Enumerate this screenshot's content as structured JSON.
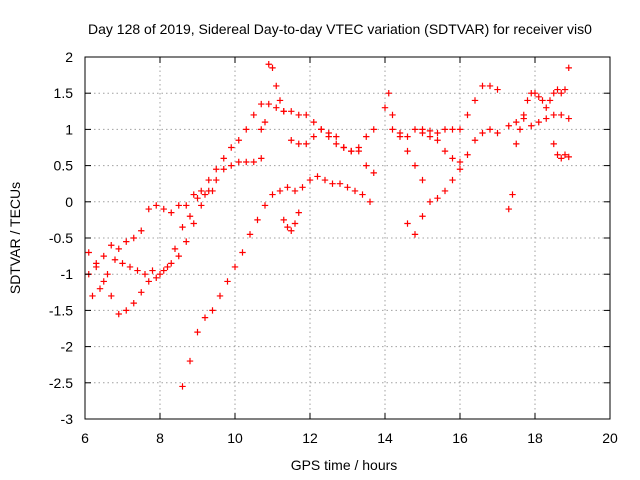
{
  "chart_data": {
    "type": "scatter",
    "title": "Day 128 of 2019, Sidereal Day-to-day VTEC variation (SDTVAR) for receiver vis0",
    "xlabel": "GPS time / hours",
    "ylabel": "SDTVAR / TECUs",
    "xlim": [
      6,
      20
    ],
    "ylim": [
      -3,
      2
    ],
    "xticks": [
      "6",
      "8",
      "10",
      "12",
      "14",
      "16",
      "18",
      "20"
    ],
    "yticks": [
      "2",
      "1.5",
      "1",
      "0.5",
      "0",
      "-0.5",
      "-1",
      "-1.5",
      "-2",
      "-2.5",
      "-3"
    ],
    "grid": true,
    "marker": "+",
    "color": "#ff0000",
    "series": [
      {
        "x": [
          6.1,
          6.3,
          6.5,
          6.7,
          6.9,
          7.1,
          7.3,
          7.5,
          7.7,
          7.9,
          8.1,
          8.3,
          8.5,
          8.7,
          8.9,
          9.1,
          9.3,
          9.5,
          9.7,
          9.9,
          10.1,
          10.3,
          10.5,
          10.7,
          10.9,
          11.1,
          11.3,
          11.5,
          11.7,
          11.9,
          12.1,
          12.3,
          12.5,
          12.7,
          12.9,
          13.1,
          13.3,
          13.5,
          13.7
        ],
        "y": [
          -1.0,
          -0.9,
          -0.75,
          -0.6,
          -0.65,
          -0.55,
          -0.5,
          -0.4,
          -0.1,
          -0.05,
          -0.1,
          -0.15,
          -0.05,
          -0.05,
          0.1,
          0.15,
          0.3,
          0.45,
          0.6,
          0.75,
          0.85,
          1.0,
          1.2,
          1.35,
          1.35,
          1.3,
          1.25,
          1.25,
          1.2,
          1.2,
          1.1,
          1.0,
          0.9,
          0.8,
          0.75,
          0.7,
          0.7,
          0.5,
          0.4
        ]
      },
      {
        "x": [
          6.1,
          6.3,
          6.5,
          6.7,
          6.9,
          7.1,
          7.3,
          7.5,
          7.7,
          7.9,
          8.1,
          8.3,
          8.5,
          8.7,
          8.9,
          9.1,
          9.3,
          9.5,
          9.7,
          9.9,
          10.1,
          10.3,
          10.5,
          10.7
        ],
        "y": [
          -0.7,
          -0.85,
          -1.1,
          -1.3,
          -1.55,
          -1.5,
          -1.4,
          -1.25,
          -1.1,
          -1.05,
          -0.95,
          -0.85,
          -0.75,
          -0.55,
          -0.3,
          -0.05,
          0.15,
          0.3,
          0.45,
          0.5,
          0.55,
          0.55,
          0.55,
          0.6
        ]
      },
      {
        "x": [
          6.2,
          6.4,
          6.6,
          6.8,
          7.0,
          7.2,
          7.4,
          7.6,
          7.8,
          8.0,
          8.2,
          8.4,
          8.6,
          8.8,
          9.0,
          9.2,
          9.4
        ],
        "y": [
          -1.3,
          -1.2,
          -1.0,
          -0.8,
          -0.85,
          -0.9,
          -0.95,
          -1.0,
          -0.95,
          -1.0,
          -0.9,
          -0.65,
          -0.35,
          -0.2,
          0.05,
          0.1,
          0.15
        ]
      },
      {
        "x": [
          8.6,
          8.8,
          9.0,
          9.2,
          9.4,
          9.6,
          9.8,
          10.0,
          10.2,
          10.4,
          10.6,
          10.8,
          11.0,
          11.2,
          11.4,
          11.6,
          11.8,
          12.0,
          12.2,
          12.4,
          12.6,
          12.8,
          13.0,
          13.2,
          13.4,
          13.6
        ],
        "y": [
          -2.55,
          -2.2,
          -1.8,
          -1.6,
          -1.5,
          -1.3,
          -1.1,
          -0.9,
          -0.7,
          -0.45,
          -0.25,
          -0.05,
          0.1,
          0.15,
          0.2,
          0.15,
          0.2,
          0.3,
          0.35,
          0.3,
          0.25,
          0.25,
          0.2,
          0.15,
          0.1,
          0.0
        ]
      },
      {
        "x": [
          10.7,
          10.8,
          10.9,
          11.0,
          11.1,
          11.2,
          11.3
        ],
        "y": [
          1.0,
          1.1,
          1.9,
          1.85,
          1.6,
          1.4,
          1.25
        ]
      },
      {
        "x": [
          11.5,
          11.7,
          11.9,
          12.1,
          12.3,
          12.5,
          12.7,
          12.9,
          13.1,
          13.3,
          13.5,
          13.7
        ],
        "y": [
          0.85,
          0.8,
          0.8,
          0.9,
          1.0,
          0.95,
          0.9,
          0.75,
          0.7,
          0.75,
          0.9,
          1.0
        ]
      },
      {
        "x": [
          11.3,
          11.4,
          11.5,
          11.6,
          11.7
        ],
        "y": [
          -0.25,
          -0.35,
          -0.4,
          -0.3,
          -0.15
        ]
      },
      {
        "x": [
          14.0,
          14.1,
          14.2,
          14.4,
          14.6,
          14.8,
          15.0,
          15.2,
          15.4,
          15.6,
          15.8,
          16.0,
          16.2,
          16.4,
          16.6,
          16.8,
          17.0
        ],
        "y": [
          1.3,
          1.5,
          1.2,
          0.95,
          0.9,
          1.0,
          1.0,
          0.98,
          0.95,
          1.0,
          1.0,
          1.0,
          1.2,
          1.4,
          1.6,
          1.6,
          1.55
        ]
      },
      {
        "x": [
          14.2,
          14.4,
          14.6,
          14.8,
          15.0
        ],
        "y": [
          1.0,
          0.9,
          0.7,
          0.5,
          0.3
        ]
      },
      {
        "x": [
          14.6,
          14.8,
          15.0,
          15.2,
          15.4,
          15.6,
          15.8,
          16.0,
          16.2,
          16.4,
          16.6,
          16.8,
          17.0
        ],
        "y": [
          -0.3,
          -0.45,
          -0.2,
          0.0,
          0.05,
          0.15,
          0.3,
          0.45,
          0.65,
          0.85,
          0.95,
          1.0,
          0.95
        ]
      },
      {
        "x": [
          15.0,
          15.2,
          15.4,
          15.6,
          15.8,
          16.0
        ],
        "y": [
          0.95,
          0.9,
          0.85,
          0.7,
          0.6,
          0.55
        ]
      },
      {
        "x": [
          17.3,
          17.4,
          17.5,
          17.6,
          17.7,
          17.8,
          17.9,
          18.0,
          18.1,
          18.2,
          18.3,
          18.4,
          18.5,
          18.6,
          18.7,
          18.8,
          18.9
        ],
        "y": [
          -0.1,
          0.1,
          0.8,
          1.0,
          1.2,
          1.4,
          1.5,
          1.5,
          1.45,
          1.4,
          1.3,
          1.4,
          1.5,
          1.55,
          1.5,
          1.55,
          1.85
        ]
      },
      {
        "x": [
          17.3,
          17.5,
          17.7,
          17.9,
          18.1,
          18.3,
          18.5,
          18.7,
          18.9
        ],
        "y": [
          1.05,
          1.1,
          1.15,
          1.05,
          1.1,
          1.15,
          1.2,
          1.2,
          1.15
        ]
      },
      {
        "x": [
          18.5,
          18.6,
          18.7,
          18.8,
          18.9
        ],
        "y": [
          0.8,
          0.65,
          0.6,
          0.65,
          0.62
        ]
      }
    ]
  }
}
